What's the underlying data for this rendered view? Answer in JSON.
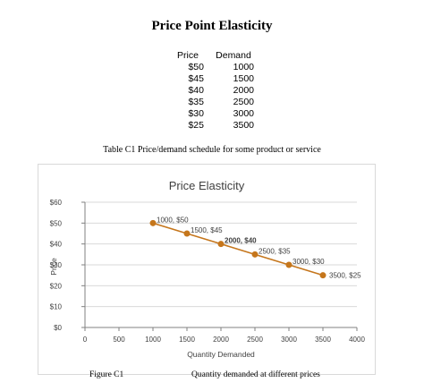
{
  "document": {
    "title": "Price Point Elasticity",
    "table_caption": "Table C1 Price/demand schedule for some product or service",
    "figure_label": "Figure C1",
    "figure_caption": "Quantity demanded at different prices"
  },
  "schedule": {
    "headers": [
      "Price",
      "Demand"
    ],
    "rows": [
      [
        "$50",
        "1000"
      ],
      [
        "$45",
        "1500"
      ],
      [
        "$40",
        "2000"
      ],
      [
        "$35",
        "2500"
      ],
      [
        "$30",
        "3000"
      ],
      [
        "$25",
        "3500"
      ]
    ]
  },
  "chart_data": {
    "type": "line",
    "title": "Price Elasticity",
    "xlabel": "Quantity Demanded",
    "ylabel": "Price",
    "xlim": [
      0,
      4000
    ],
    "ylim": [
      0,
      60
    ],
    "x_ticks": [
      0,
      500,
      1000,
      1500,
      2000,
      2500,
      3000,
      3500,
      4000
    ],
    "x_tick_labels": [
      "0",
      "500",
      "1000",
      "1500",
      "2000",
      "2500",
      "3000",
      "3500",
      "4000"
    ],
    "y_ticks": [
      0,
      10,
      20,
      30,
      40,
      50,
      60
    ],
    "y_tick_labels": [
      "$0",
      "$10",
      "$20",
      "$30",
      "$40",
      "$50",
      "$60"
    ],
    "grid": true,
    "legend": "none",
    "series_color": "#c5761c",
    "points": [
      {
        "x": 1000,
        "y": 50,
        "label": "1000, $50",
        "bold": false
      },
      {
        "x": 1500,
        "y": 45,
        "label": "1500, $45",
        "bold": false
      },
      {
        "x": 2000,
        "y": 40,
        "label": "2000, $40",
        "bold": true
      },
      {
        "x": 2500,
        "y": 35,
        "label": "2500, $35",
        "bold": false
      },
      {
        "x": 3000,
        "y": 30,
        "label": "3000, $30",
        "bold": false
      },
      {
        "x": 3500,
        "y": 25,
        "label": "3500, $25",
        "bold": false
      }
    ]
  }
}
